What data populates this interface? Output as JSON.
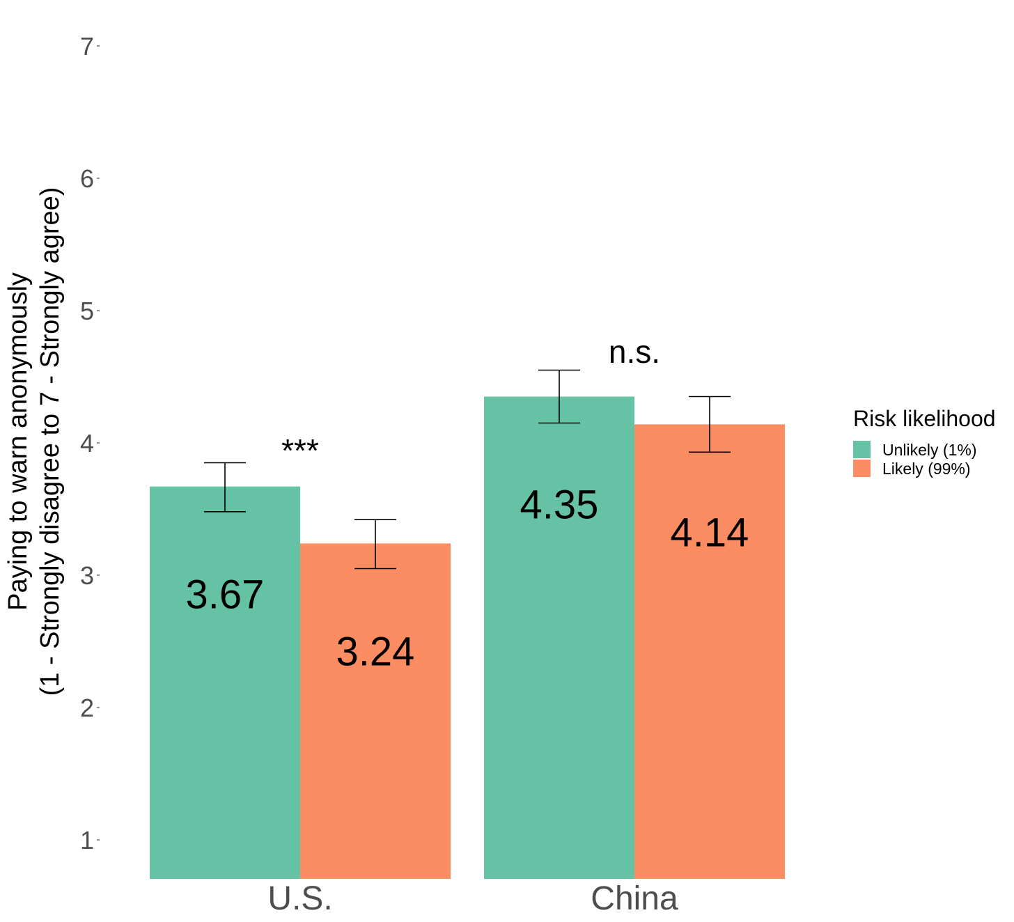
{
  "chart_data": {
    "type": "bar",
    "categories": [
      "U.S.",
      "China"
    ],
    "series": [
      {
        "name": "Unlikely (1%)",
        "color": "#66c2a5",
        "values": [
          3.67,
          4.35
        ],
        "error_low": [
          3.48,
          4.15
        ],
        "error_high": [
          3.85,
          4.55
        ],
        "labels": [
          "3.67",
          "4.35"
        ]
      },
      {
        "name": "Likely (99%)",
        "color": "#fc8d62",
        "values": [
          3.24,
          4.14
        ],
        "error_low": [
          3.05,
          3.93
        ],
        "error_high": [
          3.42,
          4.35
        ],
        "labels": [
          "3.24",
          "4.14"
        ]
      }
    ],
    "significance": [
      "***",
      "n.s."
    ],
    "ylabel_lines": [
      "Paying to warn anonymously",
      "(1 - Strongly disagree to 7 - Strongly agree)"
    ],
    "yticks": [
      1,
      2,
      3,
      4,
      5,
      6,
      7
    ],
    "ytick_labels": [
      "1",
      "2",
      "3",
      "4",
      "5",
      "6",
      "7"
    ],
    "ylim": [
      0.7,
      7.3
    ],
    "grid": false,
    "legend": {
      "title": "Risk likelihood",
      "position": "right"
    }
  }
}
